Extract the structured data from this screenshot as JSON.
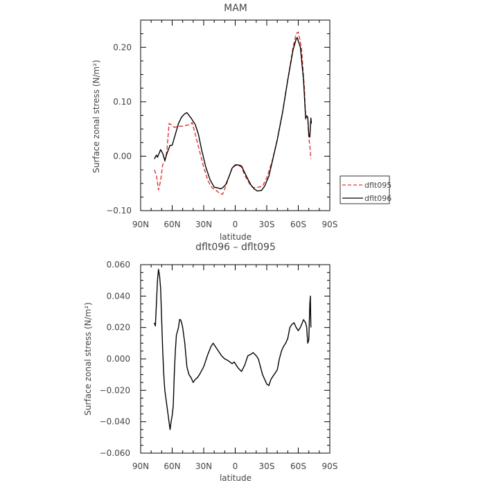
{
  "chart_data": [
    {
      "type": "line",
      "title": "MAM",
      "xlabel": "latitude",
      "ylabel": "Surface zonal stress (N/m²)",
      "x_direction": "north-to-south",
      "xlim": [
        90,
        -90
      ],
      "ylim": [
        -0.1,
        0.25
      ],
      "x_ticks": [
        {
          "value": 90,
          "label": "90N"
        },
        {
          "value": 60,
          "label": "60N"
        },
        {
          "value": 30,
          "label": "30N"
        },
        {
          "value": 0,
          "label": "0"
        },
        {
          "value": -30,
          "label": "30S"
        },
        {
          "value": -60,
          "label": "60S"
        },
        {
          "value": -90,
          "label": "90S"
        }
      ],
      "y_ticks": [
        {
          "value": -0.1,
          "label": "−0.10"
        },
        {
          "value": 0.0,
          "label": "0.00"
        },
        {
          "value": 0.1,
          "label": "0.10"
        },
        {
          "value": 0.2,
          "label": "0.20"
        }
      ],
      "legend_position": "right, lower",
      "series": [
        {
          "name": "dflt095",
          "color": "#e03030",
          "dash": "dashed",
          "points": [
            [
              77,
              -0.025
            ],
            [
              75,
              -0.035
            ],
            [
              73,
              -0.062
            ],
            [
              71,
              -0.045
            ],
            [
              69,
              -0.015
            ],
            [
              67,
              -0.01
            ],
            [
              65,
              0.01
            ],
            [
              63,
              0.06
            ],
            [
              61,
              0.058
            ],
            [
              58,
              0.053
            ],
            [
              54,
              0.055
            ],
            [
              50,
              0.055
            ],
            [
              46,
              0.057
            ],
            [
              43,
              0.058
            ],
            [
              41,
              0.062
            ],
            [
              38,
              0.04
            ],
            [
              34,
              0.01
            ],
            [
              30,
              -0.02
            ],
            [
              26,
              -0.045
            ],
            [
              22,
              -0.058
            ],
            [
              18,
              -0.063
            ],
            [
              15,
              -0.068
            ],
            [
              12,
              -0.07
            ],
            [
              9,
              -0.055
            ],
            [
              6,
              -0.038
            ],
            [
              3,
              -0.022
            ],
            [
              0,
              -0.017
            ],
            [
              -3,
              -0.017
            ],
            [
              -6,
              -0.02
            ],
            [
              -9,
              -0.035
            ],
            [
              -12,
              -0.045
            ],
            [
              -15,
              -0.055
            ],
            [
              -18,
              -0.058
            ],
            [
              -22,
              -0.057
            ],
            [
              -26,
              -0.055
            ],
            [
              -30,
              -0.04
            ],
            [
              -35,
              -0.01
            ],
            [
              -40,
              0.03
            ],
            [
              -45,
              0.08
            ],
            [
              -50,
              0.14
            ],
            [
              -55,
              0.2
            ],
            [
              -58,
              0.225
            ],
            [
              -60,
              0.228
            ],
            [
              -63,
              0.2
            ],
            [
              -66,
              0.12
            ],
            [
              -67,
              0.068
            ],
            [
              -68,
              0.075
            ],
            [
              -69,
              0.07
            ],
            [
              -70,
              0.035
            ],
            [
              -71,
              0.02
            ],
            [
              -72,
              -0.005
            ]
          ]
        },
        {
          "name": "dflt096",
          "color": "#000000",
          "dash": "solid",
          "points": [
            [
              77,
              -0.005
            ],
            [
              75,
              0.002
            ],
            [
              74,
              -0.002
            ],
            [
              71,
              0.012
            ],
            [
              69,
              0.005
            ],
            [
              67,
              -0.008
            ],
            [
              65,
              0.005
            ],
            [
              62,
              0.02
            ],
            [
              60,
              0.02
            ],
            [
              57,
              0.04
            ],
            [
              54,
              0.06
            ],
            [
              51,
              0.072
            ],
            [
              48,
              0.078
            ],
            [
              46,
              0.08
            ],
            [
              42,
              0.07
            ],
            [
              38,
              0.058
            ],
            [
              35,
              0.04
            ],
            [
              32,
              0.012
            ],
            [
              28,
              -0.02
            ],
            [
              24,
              -0.043
            ],
            [
              20,
              -0.057
            ],
            [
              17,
              -0.058
            ],
            [
              14,
              -0.06
            ],
            [
              12,
              -0.058
            ],
            [
              9,
              -0.052
            ],
            [
              6,
              -0.038
            ],
            [
              3,
              -0.022
            ],
            [
              0,
              -0.016
            ],
            [
              -3,
              -0.016
            ],
            [
              -6,
              -0.018
            ],
            [
              -9,
              -0.03
            ],
            [
              -12,
              -0.042
            ],
            [
              -15,
              -0.053
            ],
            [
              -18,
              -0.06
            ],
            [
              -21,
              -0.064
            ],
            [
              -25,
              -0.063
            ],
            [
              -28,
              -0.055
            ],
            [
              -32,
              -0.037
            ],
            [
              -35,
              -0.012
            ],
            [
              -40,
              0.03
            ],
            [
              -45,
              0.08
            ],
            [
              -50,
              0.14
            ],
            [
              -55,
              0.195
            ],
            [
              -58,
              0.215
            ],
            [
              -59,
              0.218
            ],
            [
              -62,
              0.2
            ],
            [
              -65,
              0.14
            ],
            [
              -67,
              0.07
            ],
            [
              -68,
              0.073
            ],
            [
              -69,
              0.072
            ],
            [
              -70,
              0.04
            ],
            [
              -71,
              0.035
            ],
            [
              -72,
              0.07
            ],
            [
              -72.5,
              0.06
            ]
          ]
        }
      ]
    },
    {
      "type": "line",
      "title": "dflt096 – dflt095",
      "xlabel": "latitude",
      "ylabel": "Surface zonal stress (N/m²)",
      "x_direction": "north-to-south",
      "xlim": [
        90,
        -90
      ],
      "ylim": [
        -0.06,
        0.06
      ],
      "x_ticks": [
        {
          "value": 90,
          "label": "90N"
        },
        {
          "value": 60,
          "label": "60N"
        },
        {
          "value": 30,
          "label": "30N"
        },
        {
          "value": 0,
          "label": "0"
        },
        {
          "value": -30,
          "label": "30S"
        },
        {
          "value": -60,
          "label": "60S"
        },
        {
          "value": -90,
          "label": "90S"
        }
      ],
      "y_ticks": [
        {
          "value": -0.06,
          "label": "−0.060"
        },
        {
          "value": -0.04,
          "label": "−0.040"
        },
        {
          "value": -0.02,
          "label": "−0.020"
        },
        {
          "value": 0.0,
          "label": "0.000"
        },
        {
          "value": 0.02,
          "label": "0.020"
        },
        {
          "value": 0.04,
          "label": "0.040"
        },
        {
          "value": 0.06,
          "label": "0.060"
        }
      ],
      "series": [
        {
          "color": "#000000",
          "dash": "solid",
          "points": [
            [
              77,
              0.023
            ],
            [
              76,
              0.021
            ],
            [
              75,
              0.035
            ],
            [
              74,
              0.05
            ],
            [
              73,
              0.057
            ],
            [
              72,
              0.053
            ],
            [
              71,
              0.045
            ],
            [
              70,
              0.025
            ],
            [
              69,
              0.005
            ],
            [
              68,
              -0.01
            ],
            [
              67,
              -0.02
            ],
            [
              66,
              -0.025
            ],
            [
              65,
              -0.03
            ],
            [
              64,
              -0.035
            ],
            [
              63,
              -0.04
            ],
            [
              62,
              -0.045
            ],
            [
              61,
              -0.04
            ],
            [
              60,
              -0.036
            ],
            [
              59,
              -0.03
            ],
            [
              58,
              -0.01
            ],
            [
              57,
              0.005
            ],
            [
              56,
              0.015
            ],
            [
              54,
              0.02
            ],
            [
              53,
              0.025
            ],
            [
              52,
              0.025
            ],
            [
              51,
              0.023
            ],
            [
              50,
              0.02
            ],
            [
              48,
              0.01
            ],
            [
              46,
              -0.005
            ],
            [
              44,
              -0.01
            ],
            [
              42,
              -0.012
            ],
            [
              40,
              -0.015
            ],
            [
              38,
              -0.013
            ],
            [
              36,
              -0.012
            ],
            [
              34,
              -0.01
            ],
            [
              30,
              -0.005
            ],
            [
              26,
              0.003
            ],
            [
              23,
              0.008
            ],
            [
              21,
              0.01
            ],
            [
              19,
              0.008
            ],
            [
              16,
              0.005
            ],
            [
              13,
              0.002
            ],
            [
              10,
              0.0
            ],
            [
              7,
              -0.001
            ],
            [
              5,
              -0.002
            ],
            [
              3,
              -0.003
            ],
            [
              1,
              -0.002
            ],
            [
              -1,
              -0.004
            ],
            [
              -3,
              -0.006
            ],
            [
              -6,
              -0.008
            ],
            [
              -9,
              -0.004
            ],
            [
              -12,
              0.002
            ],
            [
              -15,
              0.003
            ],
            [
              -17,
              0.004
            ],
            [
              -20,
              0.002
            ],
            [
              -22,
              0.0
            ],
            [
              -24,
              -0.005
            ],
            [
              -26,
              -0.01
            ],
            [
              -28,
              -0.013
            ],
            [
              -30,
              -0.016
            ],
            [
              -32,
              -0.017
            ],
            [
              -34,
              -0.013
            ],
            [
              -36,
              -0.011
            ],
            [
              -38,
              -0.009
            ],
            [
              -40,
              -0.007
            ],
            [
              -42,
              0.0
            ],
            [
              -44,
              0.005
            ],
            [
              -46,
              0.008
            ],
            [
              -48,
              0.01
            ],
            [
              -50,
              0.013
            ],
            [
              -52,
              0.02
            ],
            [
              -54,
              0.022
            ],
            [
              -56,
              0.023
            ],
            [
              -58,
              0.02
            ],
            [
              -60,
              0.018
            ],
            [
              -62,
              0.02
            ],
            [
              -65,
              0.025
            ],
            [
              -67,
              0.023
            ],
            [
              -68,
              0.02
            ],
            [
              -69,
              0.01
            ],
            [
              -70,
              0.012
            ],
            [
              -71,
              0.035
            ],
            [
              -71.5,
              0.04
            ],
            [
              -72,
              0.02
            ]
          ]
        }
      ]
    }
  ]
}
